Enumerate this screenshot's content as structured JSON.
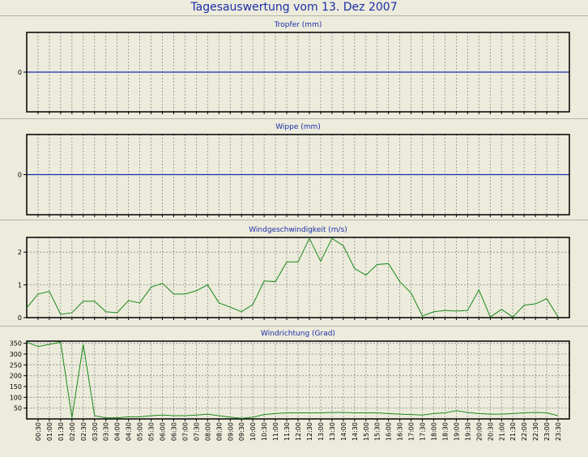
{
  "page": {
    "title": "Tagesauswertung vom 13. Dez 2007"
  },
  "colors": {
    "background": "#ecebdc",
    "title": "#1b2ea8",
    "zero_line": "#1b2ea8",
    "series_line": "#1a8a1a",
    "grid": "#8c8c8c",
    "axis": "#000000"
  },
  "x_labels": [
    "00:30",
    "01:00",
    "01:30",
    "02:00",
    "02:30",
    "03:00",
    "03:30",
    "04:00",
    "04:30",
    "05:00",
    "05:30",
    "06:00",
    "06:30",
    "07:00",
    "07:30",
    "08:00",
    "08:30",
    "09:00",
    "09:30",
    "10:00",
    "10:30",
    "11:00",
    "11:30",
    "12:00",
    "12:30",
    "13:00",
    "13:30",
    "14:00",
    "14:30",
    "15:00",
    "15:30",
    "16:00",
    "16:30",
    "17:00",
    "17:30",
    "18:00",
    "18:30",
    "19:00",
    "19:30",
    "20:00",
    "20:30",
    "21:00",
    "21:30",
    "22:00",
    "22:30",
    "23:00",
    "23:30"
  ],
  "chart_data": [
    {
      "type": "line",
      "title": "Tropfer (mm)",
      "yticks": [
        0
      ],
      "ylim": [
        -1,
        1
      ],
      "grid": true,
      "series": [
        {
          "values": [
            0,
            0,
            0,
            0,
            0,
            0,
            0,
            0,
            0,
            0,
            0,
            0,
            0,
            0,
            0,
            0,
            0,
            0,
            0,
            0,
            0,
            0,
            0,
            0,
            0,
            0,
            0,
            0,
            0,
            0,
            0,
            0,
            0,
            0,
            0,
            0,
            0,
            0,
            0,
            0,
            0,
            0,
            0,
            0,
            0,
            0,
            0,
            0
          ]
        }
      ]
    },
    {
      "type": "line",
      "title": "Wippe (mm)",
      "yticks": [
        0
      ],
      "ylim": [
        -1,
        1
      ],
      "grid": true,
      "series": [
        {
          "values": [
            0,
            0,
            0,
            0,
            0,
            0,
            0,
            0,
            0,
            0,
            0,
            0,
            0,
            0,
            0,
            0,
            0,
            0,
            0,
            0,
            0,
            0,
            0,
            0,
            0,
            0,
            0,
            0,
            0,
            0,
            0,
            0,
            0,
            0,
            0,
            0,
            0,
            0,
            0,
            0,
            0,
            0,
            0,
            0,
            0,
            0,
            0,
            0
          ]
        }
      ]
    },
    {
      "type": "line",
      "title": "Windgeschwindigkeit (m/s)",
      "yticks": [
        0,
        1,
        2
      ],
      "ylim": [
        0,
        2.45
      ],
      "grid": true,
      "series": [
        {
          "values": [
            0.3,
            0.72,
            0.8,
            0.1,
            0.15,
            0.5,
            0.5,
            0.18,
            0.15,
            0.52,
            0.45,
            0.93,
            1.05,
            0.72,
            0.72,
            0.82,
            1.0,
            0.45,
            0.32,
            0.18,
            0.4,
            1.12,
            1.1,
            1.7,
            1.7,
            2.42,
            1.72,
            2.42,
            2.2,
            1.5,
            1.3,
            1.62,
            1.65,
            1.1,
            0.75,
            0.05,
            0.18,
            0.22,
            0.2,
            0.22,
            0.85,
            0.02,
            0.25,
            0.02,
            0.38,
            0.42,
            0.58,
            0.02
          ]
        }
      ]
    },
    {
      "type": "line",
      "title": "Windrichtung (Grad)",
      "yticks": [
        50,
        100,
        150,
        200,
        250,
        300,
        350
      ],
      "ylim": [
        0,
        360
      ],
      "grid": true,
      "series": [
        {
          "values": [
            355,
            335,
            345,
            355,
            5,
            345,
            15,
            5,
            5,
            10,
            10,
            15,
            18,
            15,
            15,
            18,
            22,
            15,
            8,
            3,
            8,
            20,
            25,
            28,
            28,
            28,
            28,
            30,
            30,
            28,
            28,
            28,
            25,
            22,
            20,
            18,
            25,
            28,
            38,
            30,
            25,
            22,
            22,
            25,
            28,
            30,
            28,
            15
          ]
        }
      ]
    }
  ]
}
